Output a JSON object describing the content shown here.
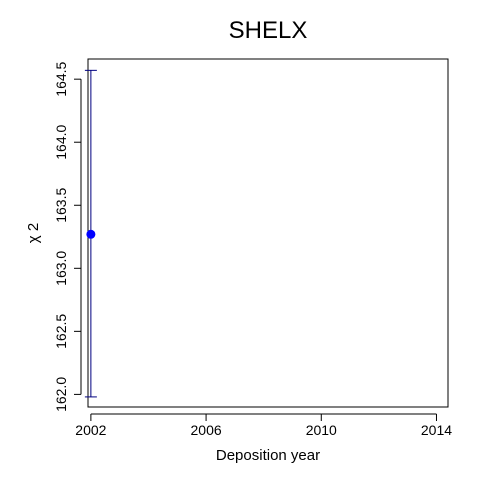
{
  "chart_data": {
    "type": "scatter",
    "title": "SHELX",
    "xlabel": "Deposition year",
    "ylabel": "χ 2",
    "xlim": [
      2001.9,
      2014.4
    ],
    "ylim": [
      161.9,
      164.66
    ],
    "x_ticks": [
      2002,
      2006,
      2010,
      2014
    ],
    "y_ticks": [
      162.0,
      162.5,
      163.0,
      163.5,
      164.0,
      164.5
    ],
    "x_tick_labels": [
      "2002",
      "2006",
      "2010",
      "2014"
    ],
    "y_tick_labels": [
      "162.0",
      "162.5",
      "163.0",
      "163.5",
      "164.0",
      "164.5"
    ],
    "series": [
      {
        "points": [
          {
            "x": 2002,
            "y": 163.27,
            "error_low": 161.98,
            "error_high": 164.57
          }
        ],
        "color": "#0000ff",
        "error_bar_color": "#000080"
      }
    ],
    "grid": false,
    "legend": "none"
  }
}
